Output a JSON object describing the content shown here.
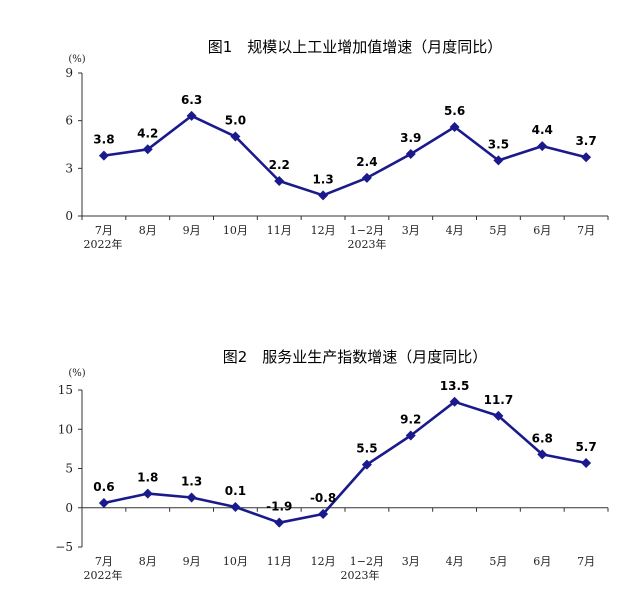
{
  "colors": {
    "series": "#1a1a8c",
    "axis": "#333333"
  },
  "chart_data": [
    {
      "type": "line",
      "title": "图1　规模以上工业增加值增速（月度同比）",
      "unit": "(%)",
      "categories": [
        "7月",
        "8月",
        "9月",
        "10月",
        "11月",
        "12月",
        "1−2月",
        "3月",
        "4月",
        "5月",
        "6月",
        "7月"
      ],
      "year_labels": [
        "2022年",
        "2023年"
      ],
      "values": [
        3.8,
        4.2,
        6.3,
        5.0,
        2.2,
        1.3,
        2.4,
        3.9,
        5.6,
        3.5,
        4.4,
        3.7
      ],
      "value_labels": [
        "3.8",
        "4.2",
        "6.3",
        "5.0",
        "2.2",
        "1.3",
        "2.4",
        "3.9",
        "5.6",
        "3.5",
        "4.4",
        "3.7"
      ],
      "yticks": [
        "0",
        "3",
        "6",
        "9"
      ],
      "ylim": [
        0,
        9
      ],
      "grid": false,
      "marker": "diamond"
    },
    {
      "type": "line",
      "title": "图2　服务业生产指数增速（月度同比）",
      "unit": "(%)",
      "categories": [
        "7月",
        "8月",
        "9月",
        "10月",
        "11月",
        "12月",
        "1−2月",
        "3月",
        "4月",
        "5月",
        "6月",
        "7月"
      ],
      "year_labels": [
        "2022年",
        "2023年"
      ],
      "values": [
        0.6,
        1.8,
        1.3,
        0.1,
        -1.9,
        -0.8,
        5.5,
        9.2,
        13.5,
        11.7,
        6.8,
        5.7
      ],
      "value_labels": [
        "0.6",
        "1.8",
        "1.3",
        "0.1",
        "-1.9",
        "-0.8",
        "5.5",
        "9.2",
        "13.5",
        "11.7",
        "6.8",
        "5.7"
      ],
      "yticks": [
        "−5",
        "0",
        "5",
        "10",
        "15"
      ],
      "ylim": [
        -5,
        15
      ],
      "grid": false,
      "marker": "diamond"
    }
  ]
}
